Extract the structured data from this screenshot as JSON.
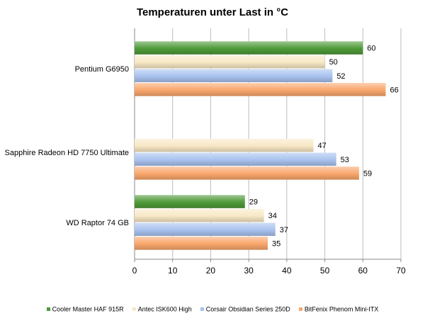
{
  "chart_data": {
    "type": "bar",
    "orientation": "horizontal",
    "title": "Temperaturen  unter Last in °C",
    "categories": [
      "Pentium G6950",
      "Sapphire Radeon HD 7750 Ultimate",
      "WD Raptor 74 GB"
    ],
    "series": [
      {
        "name": "Cooler Master HAF 915R",
        "color": "#4e9a38",
        "values": [
          60,
          null,
          29
        ]
      },
      {
        "name": "Antec ISK600 High",
        "color": "#f7e7c4",
        "values": [
          50,
          47,
          34
        ]
      },
      {
        "name": "Corsair Obsidian Series 250D",
        "color": "#a8c2ee",
        "values": [
          52,
          53,
          37
        ]
      },
      {
        "name": "BitFenix Phenom  Mini-ITX",
        "color": "#f9a66b",
        "values": [
          66,
          59,
          35
        ]
      }
    ],
    "xlim": [
      0,
      70
    ],
    "xticks": [
      0,
      10,
      20,
      30,
      40,
      50,
      60,
      70
    ],
    "grid": true,
    "legend_position": "bottom"
  }
}
